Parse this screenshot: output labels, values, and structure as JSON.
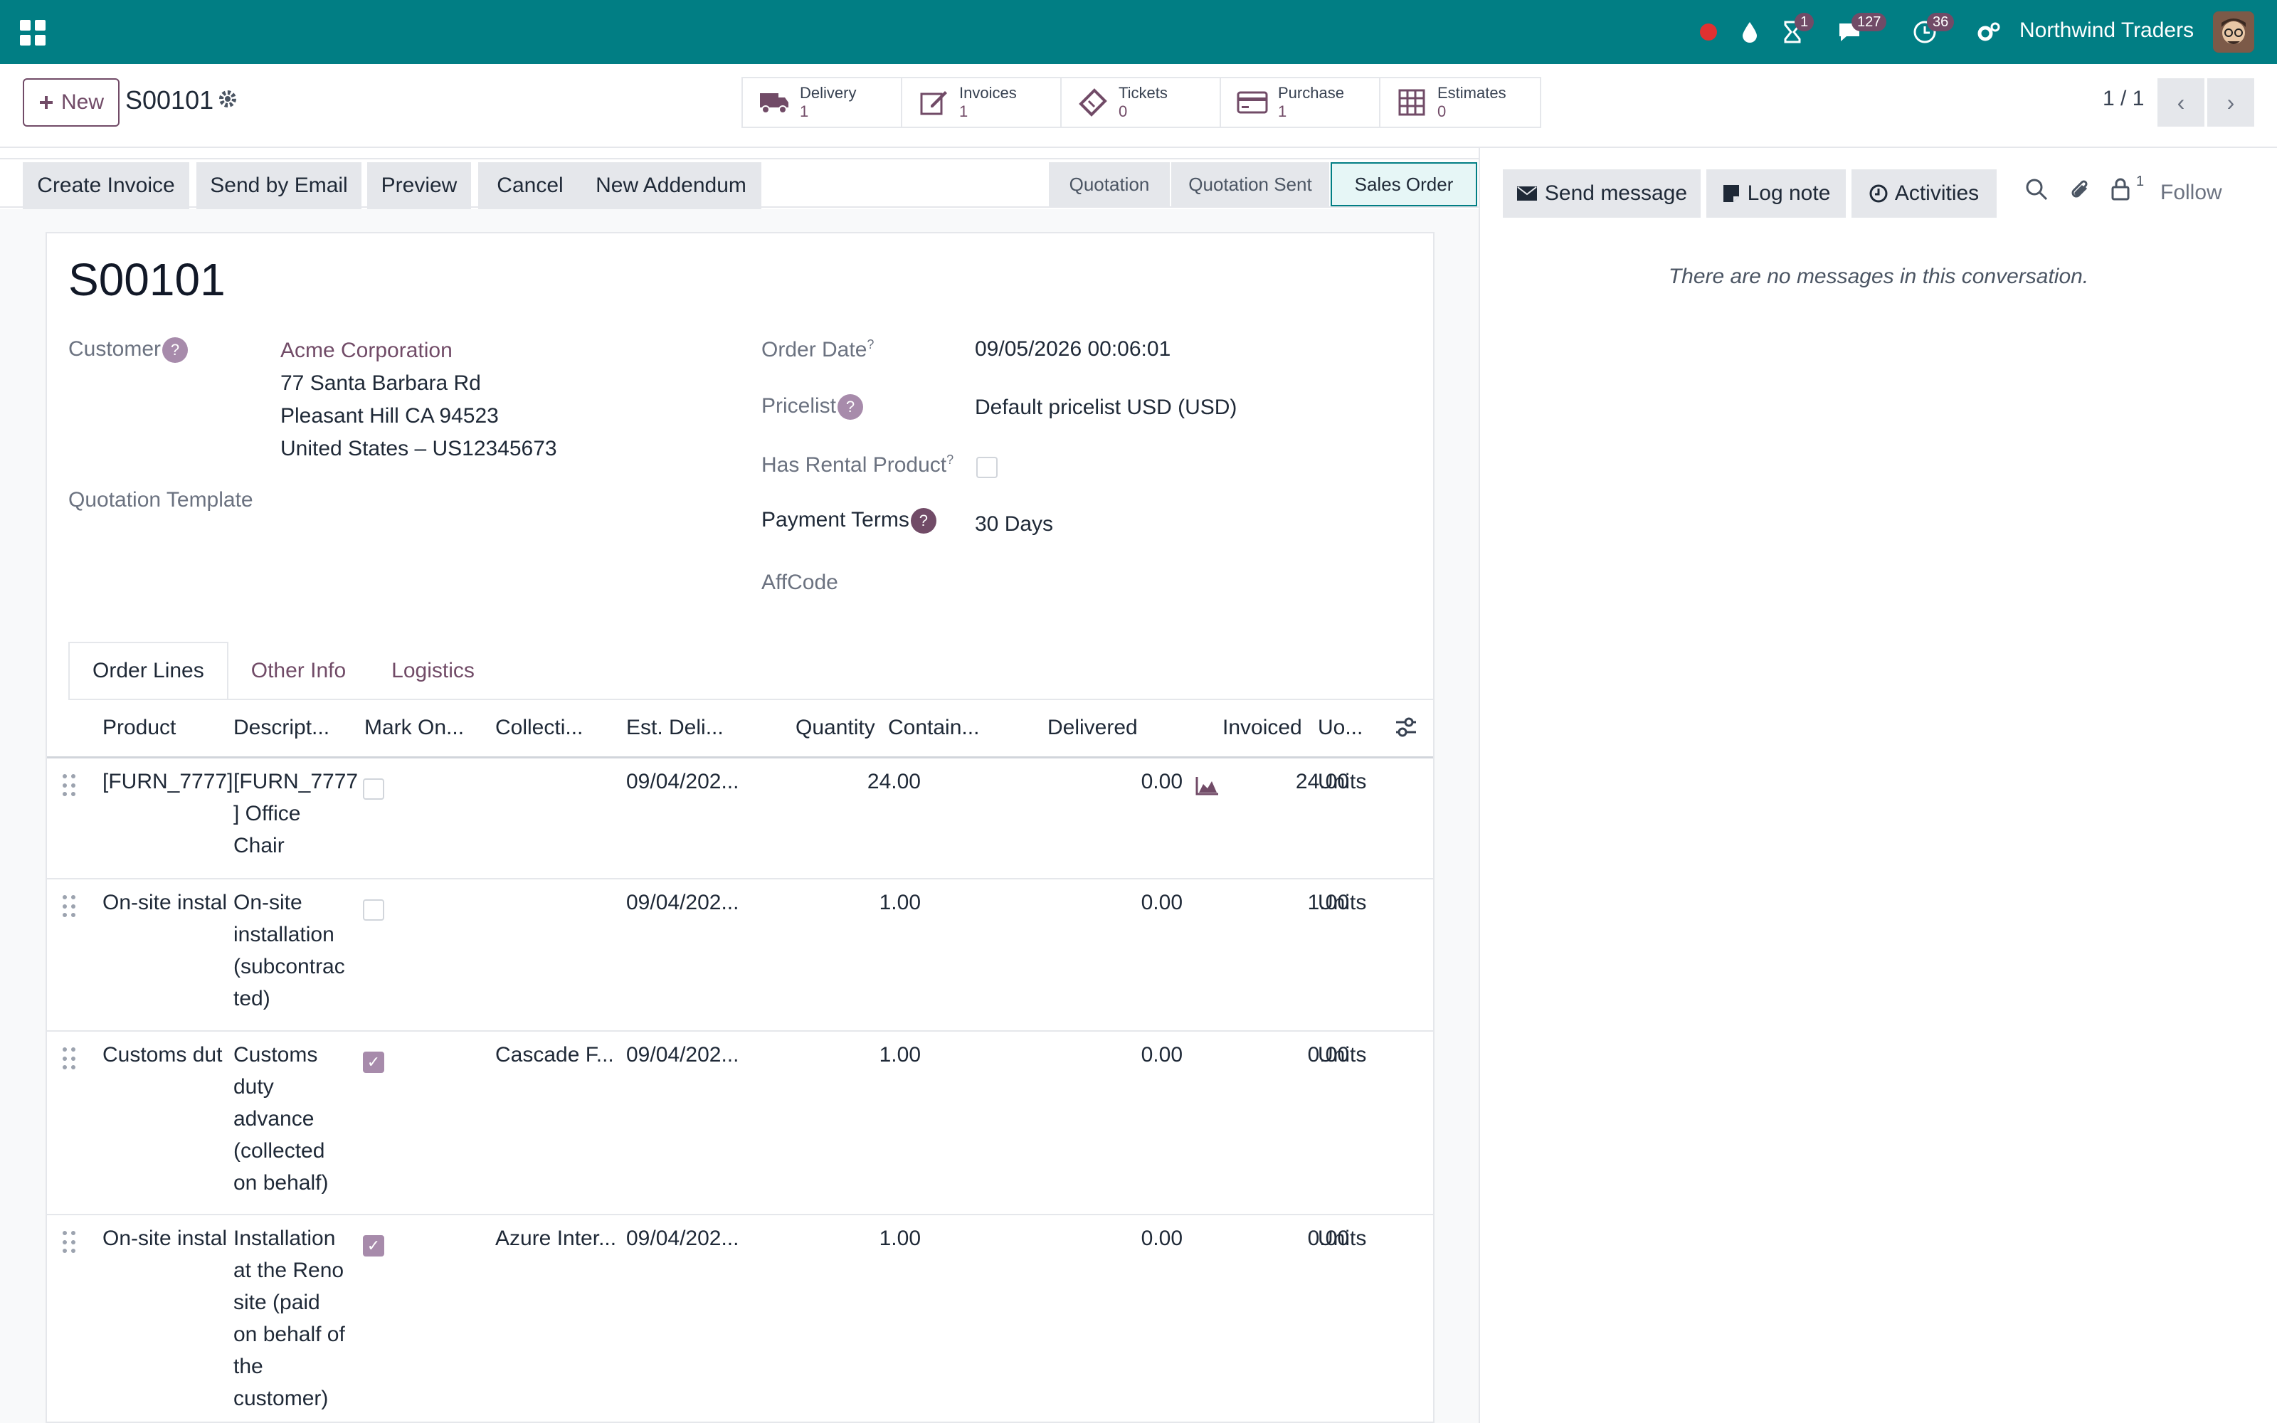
{
  "navbar": {
    "company": "Northwind Traders",
    "badges": {
      "activities": "1",
      "messages": "127",
      "clock": "36"
    }
  },
  "control_panel": {
    "new_label": "New",
    "record_name": "S00101",
    "pager": "1 / 1",
    "smart_buttons": [
      {
        "label": "Delivery",
        "count": "1",
        "icon": "truck-icon"
      },
      {
        "label": "Invoices",
        "count": "1",
        "icon": "edit-icon"
      },
      {
        "label": "Tickets",
        "count": "0",
        "icon": "ticket-icon"
      },
      {
        "label": "Purchase",
        "count": "1",
        "icon": "credit-card-icon"
      },
      {
        "label": "Estimates",
        "count": "0",
        "icon": "grid-icon"
      }
    ]
  },
  "actions": {
    "create_invoice": "Create Invoice",
    "send_email": "Send by Email",
    "preview": "Preview",
    "cancel": "Cancel",
    "new_addendum": "New Addendum"
  },
  "stages": [
    "Quotation",
    "Quotation Sent",
    "Sales Order"
  ],
  "form": {
    "title": "S00101",
    "customer_label": "Customer",
    "customer_name": "Acme Corporation",
    "address_1": "77 Santa Barbara Rd",
    "address_2": "Pleasant Hill CA 94523",
    "address_3": "United States – US12345673",
    "quotation_template_label": "Quotation Template",
    "order_date_label": "Order Date",
    "order_date": "09/05/2026 00:06:01",
    "pricelist_label": "Pricelist",
    "pricelist": "Default pricelist USD (USD)",
    "rental_label": "Has Rental Product",
    "payment_terms_label": "Payment Terms",
    "payment_terms": "30 Days",
    "affcode_label": "AffCode"
  },
  "tabs": [
    "Order Lines",
    "Other Info",
    "Logistics"
  ],
  "table": {
    "headers": {
      "product": "Product",
      "description": "Descript...",
      "mark": "Mark On...",
      "collection": "Collecti...",
      "delivery_date": "Est. Deli...",
      "quantity": "Quantity",
      "container": "Contain...",
      "delivered": "Delivered",
      "invoiced": "Invoiced",
      "uom": "Uo..."
    },
    "rows": [
      {
        "product": "[FURN_7777]",
        "description": [
          "[FURN_7777",
          "] Office",
          "Chair"
        ],
        "checked": false,
        "collection": "",
        "date": "09/04/202...",
        "quantity": "24.00",
        "delivered": "0.00",
        "invoiced": "24.00",
        "uom": "Units"
      },
      {
        "product": "On-site instal",
        "description": [
          "On-site",
          "installation",
          "(subcontrac",
          "ted)"
        ],
        "checked": false,
        "collection": "",
        "date": "09/04/202...",
        "quantity": "1.00",
        "delivered": "0.00",
        "invoiced": "1.00",
        "uom": "Units"
      },
      {
        "product": "Customs dut",
        "description": [
          "Customs",
          "duty",
          "advance",
          "(collected",
          "on behalf)"
        ],
        "checked": true,
        "collection": "Cascade F...",
        "date": "09/04/202...",
        "quantity": "1.00",
        "delivered": "0.00",
        "invoiced": "0.00",
        "uom": "Units"
      },
      {
        "product": "On-site instal",
        "description": [
          "Installation",
          "at the Reno",
          "site (paid",
          "on behalf of",
          "the",
          "customer)"
        ],
        "checked": true,
        "collection": "Azure Inter...",
        "date": "09/04/202...",
        "quantity": "1.00",
        "delivered": "0.00",
        "invoiced": "0.00",
        "uom": "Units"
      }
    ]
  },
  "chatter": {
    "send_message": "Send message",
    "log_note": "Log note",
    "activities": "Activities",
    "followers_count": "1",
    "follow": "Follow",
    "empty": "There are no messages in this conversation."
  },
  "colors": {
    "navbar": "#017e84",
    "brand": "#714b67"
  }
}
